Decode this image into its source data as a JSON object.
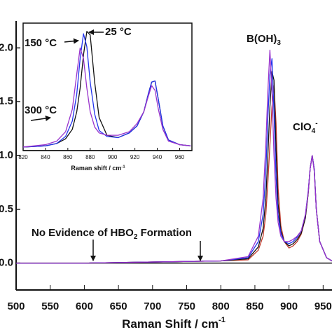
{
  "chart_data": [
    {
      "type": "line",
      "x_label": [
        "Raman Shift / cm",
        "-1"
      ],
      "x": [
        500,
        600,
        700,
        800,
        840,
        855,
        862,
        866,
        869,
        872,
        875,
        878,
        881,
        884,
        888,
        893,
        900,
        906,
        912,
        918,
        924,
        928,
        931,
        934,
        937,
        940,
        945,
        955,
        963
      ],
      "series": [
        {
          "name": "red",
          "color": "#c0392b",
          "values": [
            0,
            0,
            0.01,
            0.02,
            0.03,
            0.12,
            0.25,
            0.45,
            0.75,
            1.1,
            1.45,
            1.65,
            1.3,
            0.7,
            0.35,
            0.2,
            0.14,
            0.16,
            0.2,
            0.27,
            0.42,
            0.64,
            0.88,
            1.0,
            0.87,
            0.5,
            0.2,
            0.05,
            0.02
          ]
        },
        {
          "name": "black",
          "color": "#111111",
          "values": [
            0,
            0,
            0.01,
            0.02,
            0.04,
            0.15,
            0.32,
            0.6,
            1.0,
            1.45,
            1.78,
            1.7,
            1.05,
            0.55,
            0.3,
            0.2,
            0.16,
            0.18,
            0.22,
            0.28,
            0.42,
            0.64,
            0.88,
            1.0,
            0.87,
            0.5,
            0.2,
            0.05,
            0.02
          ]
        },
        {
          "name": "blue",
          "color": "#2233ee",
          "values": [
            0,
            0,
            0.01,
            0.02,
            0.05,
            0.2,
            0.45,
            0.85,
            1.35,
            1.75,
            1.9,
            1.4,
            0.8,
            0.45,
            0.28,
            0.2,
            0.18,
            0.2,
            0.24,
            0.3,
            0.45,
            0.66,
            0.88,
            1.0,
            0.87,
            0.5,
            0.2,
            0.05,
            0.02
          ]
        },
        {
          "name": "purple",
          "color": "#9933cc",
          "values": [
            0,
            0,
            0.01,
            0.02,
            0.06,
            0.25,
            0.6,
            1.1,
            1.6,
            1.98,
            1.6,
            1.0,
            0.6,
            0.38,
            0.25,
            0.2,
            0.2,
            0.22,
            0.25,
            0.3,
            0.45,
            0.65,
            0.88,
            1.0,
            0.85,
            0.5,
            0.2,
            0.05,
            0.02
          ]
        }
      ],
      "xlim": [
        500,
        963
      ],
      "xticks": [
        500,
        550,
        600,
        650,
        700,
        750,
        800,
        850,
        900,
        950
      ],
      "ylim": [
        -0.25,
        2.25
      ],
      "yticks": [
        {
          "value": 2.0,
          "label": "2.0"
        },
        {
          "value": 1.5,
          "label": "1.5"
        },
        {
          "value": 1.0,
          "label": "1.0"
        },
        {
          "value": 0.5,
          "label": "0.5"
        },
        {
          "value": 0.0,
          "label": "0.0"
        }
      ],
      "annotations": {
        "boh3": [
          "B(OH)",
          "3"
        ],
        "clo4": [
          "ClO",
          "4",
          "-"
        ],
        "hbo2": [
          "No Evidence of HBO",
          "2",
          " Formation"
        ]
      }
    },
    {
      "type": "line",
      "x_label": [
        "Raman shift / cm",
        "-1"
      ],
      "x": [
        820,
        840,
        850,
        858,
        864,
        868,
        871,
        874,
        877,
        880,
        884,
        888,
        895,
        905,
        915,
        922,
        928,
        932,
        935,
        938,
        941,
        945,
        950,
        960,
        970
      ],
      "series": [
        {
          "name": "black",
          "color": "#111111",
          "values": [
            0,
            0.01,
            0.03,
            0.07,
            0.15,
            0.3,
            0.5,
            0.78,
            0.98,
            0.95,
            0.55,
            0.25,
            0.1,
            0.08,
            0.12,
            0.18,
            0.3,
            0.45,
            0.55,
            0.56,
            0.4,
            0.18,
            0.06,
            0.02,
            0.01
          ]
        },
        {
          "name": "blue",
          "color": "#2233ee",
          "values": [
            0,
            0.01,
            0.03,
            0.09,
            0.22,
            0.45,
            0.75,
            0.96,
            0.85,
            0.55,
            0.28,
            0.14,
            0.09,
            0.08,
            0.12,
            0.18,
            0.3,
            0.45,
            0.55,
            0.56,
            0.4,
            0.18,
            0.06,
            0.02,
            0.01
          ]
        },
        {
          "name": "purple",
          "color": "#9933cc",
          "values": [
            0,
            0.02,
            0.05,
            0.13,
            0.32,
            0.62,
            0.84,
            0.75,
            0.5,
            0.3,
            0.17,
            0.12,
            0.1,
            0.1,
            0.13,
            0.2,
            0.3,
            0.43,
            0.52,
            0.48,
            0.32,
            0.15,
            0.05,
            0.02,
            0.01
          ]
        }
      ],
      "xlim": [
        820,
        971
      ],
      "xticks": [
        820,
        840,
        860,
        880,
        900,
        920,
        940,
        960
      ],
      "ylim": [
        -0.03,
        1.05
      ],
      "annotations": {
        "t25": "25 °C",
        "t150": "150 °C",
        "t300": "300 °C"
      }
    }
  ]
}
